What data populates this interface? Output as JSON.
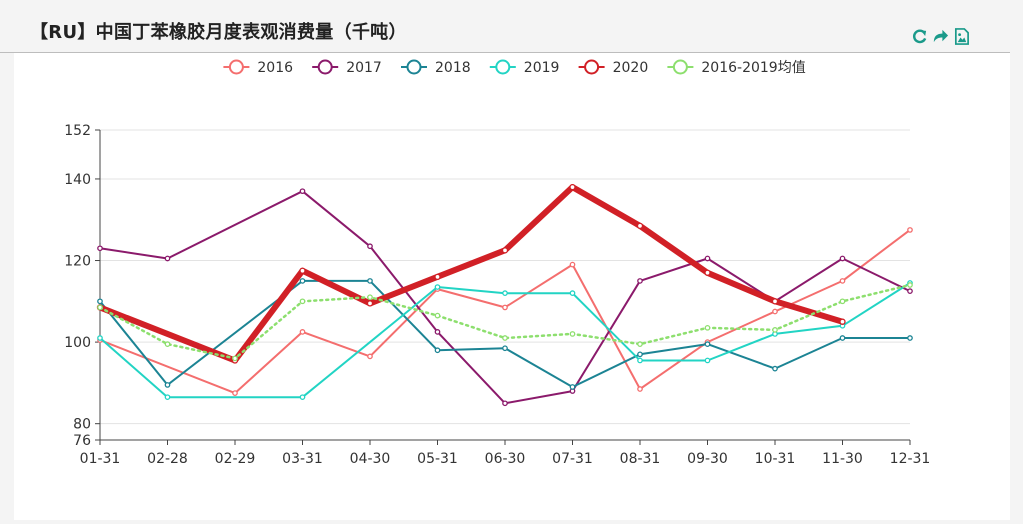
{
  "header": {
    "title": "【RU】中国丁苯橡胶月度表观消费量（千吨）"
  },
  "toolbar": {
    "icons": [
      "refresh-icon",
      "share-icon",
      "save-image-icon"
    ],
    "accent": "#1a9a8a"
  },
  "chart_data": {
    "type": "line",
    "title": "",
    "xlabel": "",
    "ylabel": "",
    "categories": [
      "01-31",
      "02-28",
      "02-29",
      "03-31",
      "04-30",
      "05-31",
      "06-30",
      "07-31",
      "08-31",
      "09-30",
      "10-31",
      "11-30",
      "12-31"
    ],
    "y_ticks": [
      76,
      80,
      100,
      120,
      140,
      152
    ],
    "ylim": [
      76,
      152
    ],
    "grid": true,
    "legend_position": "top",
    "series": [
      {
        "name": "2016",
        "color": "#f46e6e",
        "style": "solid",
        "width": 2,
        "values": [
          100.5,
          null,
          87.5,
          102.5,
          96.5,
          113,
          108.5,
          119,
          88.5,
          100,
          107.5,
          115,
          127.5
        ]
      },
      {
        "name": "2017",
        "color": "#8b1a6b",
        "style": "solid",
        "width": 2,
        "values": [
          123,
          120.5,
          null,
          137,
          123.5,
          102.5,
          85,
          88,
          115,
          120.5,
          110,
          120.5,
          112.5
        ]
      },
      {
        "name": "2018",
        "color": "#1c8494",
        "style": "solid",
        "width": 2,
        "values": [
          110,
          89.5,
          null,
          115,
          115,
          98,
          98.5,
          89,
          97,
          99.5,
          93.5,
          101,
          101
        ]
      },
      {
        "name": "2019",
        "color": "#22d4c4",
        "style": "solid",
        "width": 2,
        "values": [
          101,
          86.5,
          null,
          86.5,
          null,
          113.5,
          112,
          112,
          95.5,
          95.5,
          102,
          104,
          114.5
        ]
      },
      {
        "name": "2020",
        "color": "#d12026",
        "style": "solid",
        "width": 6,
        "values": [
          108.5,
          null,
          95.5,
          117.5,
          109.5,
          116,
          122.5,
          138,
          128.5,
          117,
          110,
          105,
          null
        ]
      },
      {
        "name": "2016-2019均值",
        "color": "#8ddf6e",
        "style": "dotted",
        "width": 2.5,
        "values": [
          108.5,
          99.5,
          96,
          110,
          111,
          106.5,
          101,
          102,
          99.5,
          103.5,
          103,
          110,
          114
        ]
      }
    ]
  }
}
